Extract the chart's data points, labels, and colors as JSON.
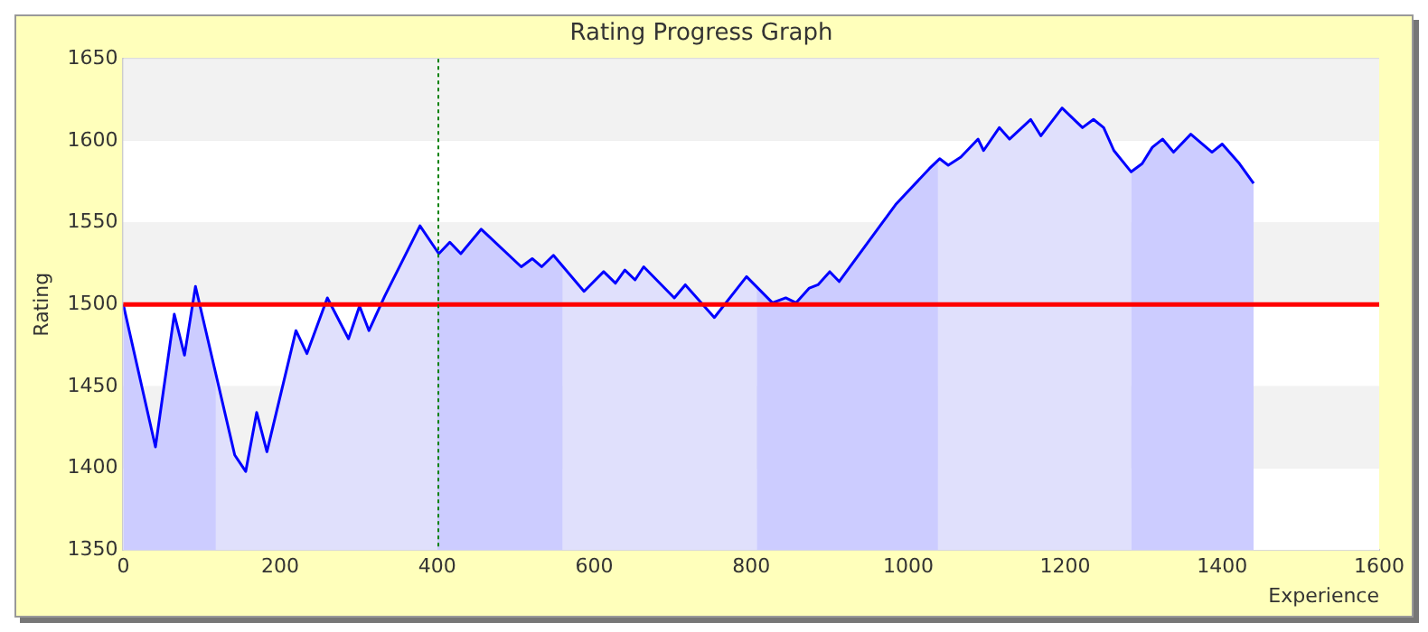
{
  "chart_data": {
    "type": "line",
    "title": "Rating Progress Graph",
    "xlabel": "Experience",
    "ylabel": "Rating",
    "x": [
      0,
      41,
      65,
      78,
      92,
      142,
      156,
      170,
      183,
      220,
      234,
      260,
      287,
      301,
      313,
      333,
      378,
      402,
      416,
      430,
      456,
      507,
      521,
      533,
      548,
      587,
      612,
      627,
      639,
      652,
      663,
      702,
      716,
      753,
      794,
      827,
      844,
      857,
      874,
      885,
      900,
      912,
      984,
      1027,
      1040,
      1051,
      1067,
      1089,
      1096,
      1116,
      1129,
      1156,
      1169,
      1196,
      1222,
      1236,
      1249,
      1262,
      1284,
      1298,
      1311,
      1324,
      1338,
      1360,
      1387,
      1400,
      1422,
      1440
    ],
    "series": [
      {
        "color": "#0000ff",
        "values": [
          1500,
          1413,
          1494,
          1469,
          1511,
          1408,
          1398,
          1434,
          1410,
          1484,
          1470,
          1504,
          1479,
          1499,
          1484,
          1505,
          1548,
          1531,
          1538,
          1531,
          1546,
          1523,
          1528,
          1523,
          1530,
          1508,
          1520,
          1513,
          1521,
          1515,
          1523,
          1504,
          1512,
          1492,
          1517,
          1501,
          1504,
          1501,
          1510,
          1512,
          1520,
          1514,
          1561,
          1583,
          1589,
          1585,
          1590,
          1601,
          1594,
          1608,
          1601,
          1613,
          1603,
          1620,
          1608,
          1613,
          1608,
          1594,
          1581,
          1586,
          1596,
          1601,
          1593,
          1604,
          1593,
          1598,
          1586,
          1574
        ]
      }
    ],
    "xlim": [
      0,
      1600
    ],
    "xticks": [
      0,
      200,
      400,
      600,
      800,
      1000,
      1200,
      1400,
      1600
    ],
    "ylim": [
      1350,
      1650
    ],
    "yticks": [
      1350,
      1400,
      1450,
      1500,
      1550,
      1600,
      1650
    ],
    "grid": "y",
    "marker": "none",
    "line_style": "solid",
    "legend": false,
    "ref_lines": [
      {
        "axis": "y",
        "value": 1500,
        "color": "#ff0000",
        "line_style": "solid"
      },
      {
        "axis": "x",
        "value": 400,
        "color": "#008000",
        "line_style": "dotted"
      }
    ],
    "bands": [
      {
        "axis": "x",
        "from": 0,
        "to": 118,
        "color": "#ccccff"
      },
      {
        "axis": "x",
        "from": 118,
        "to": 400,
        "color": "#e0e0fc"
      },
      {
        "axis": "x",
        "from": 400,
        "to": 560,
        "color": "#ccccff"
      },
      {
        "axis": "x",
        "from": 560,
        "to": 807,
        "color": "#e0e0fc"
      },
      {
        "axis": "x",
        "from": 807,
        "to": 1038,
        "color": "#ccccff"
      },
      {
        "axis": "x",
        "from": 1038,
        "to": 1284,
        "color": "#e0e0fc"
      },
      {
        "axis": "x",
        "from": 1284,
        "to": 1440,
        "color": "#ccccff"
      }
    ]
  }
}
